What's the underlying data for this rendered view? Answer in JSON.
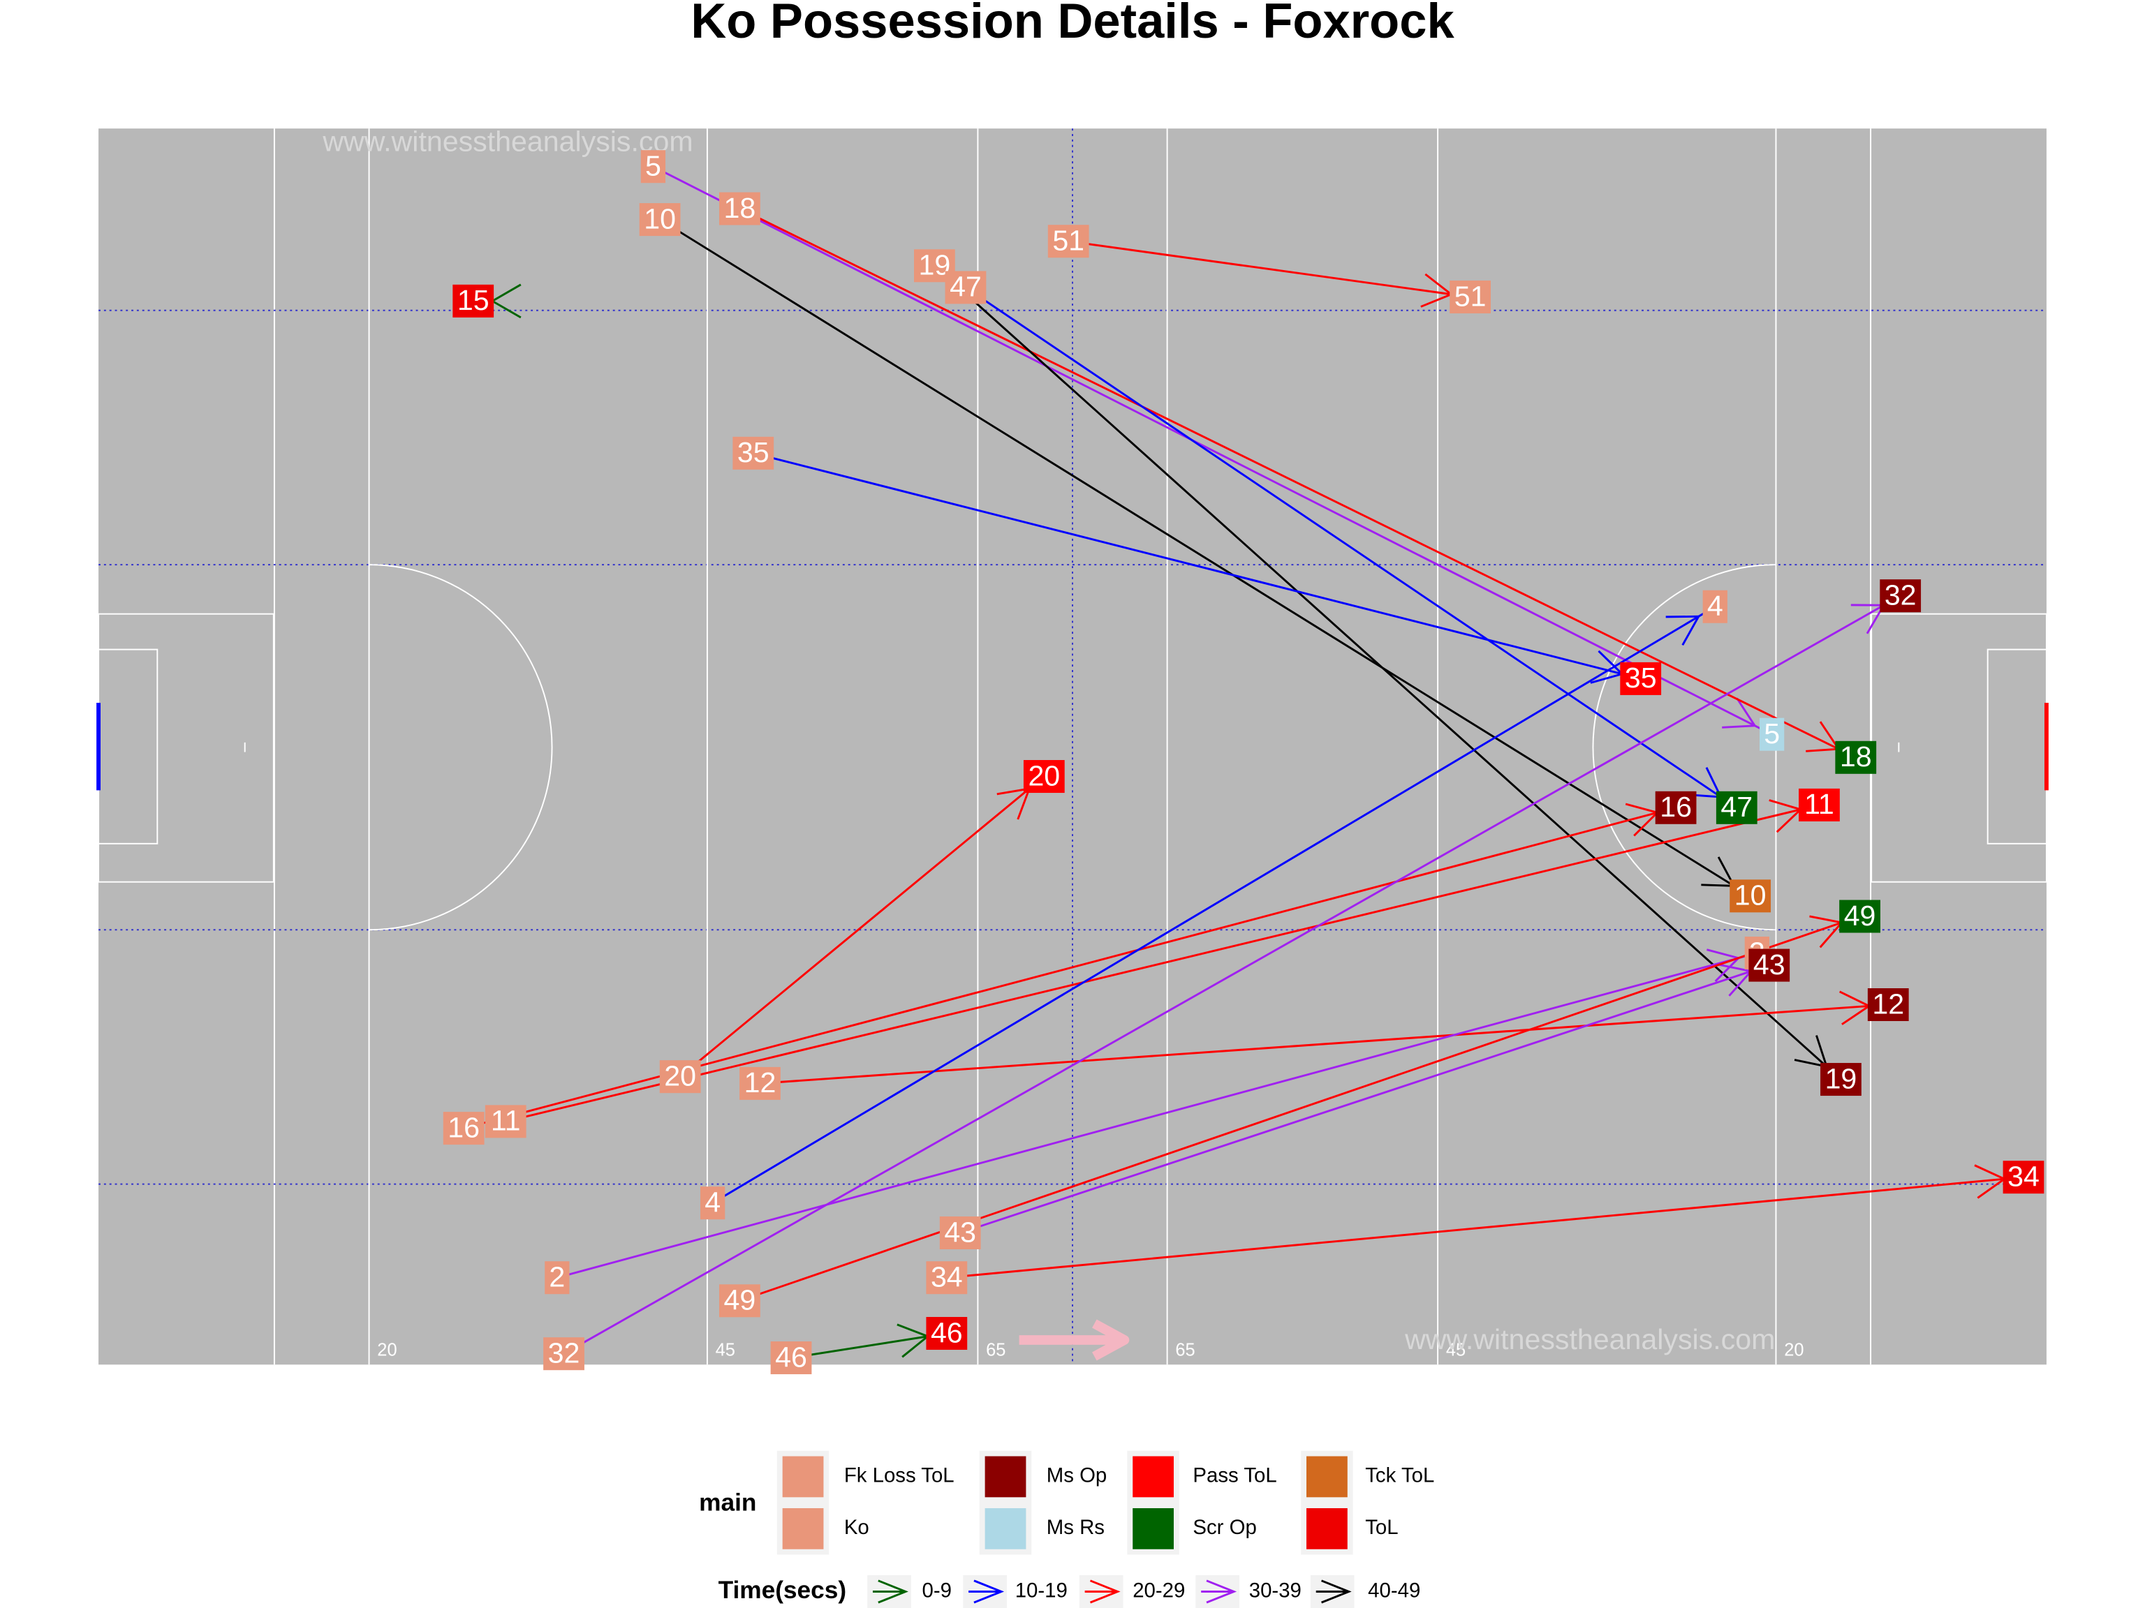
{
  "chart_data": {
    "type": "pitch_arrows",
    "title": "Ko Possession Details - Foxrock",
    "watermarks": [
      "www.witnesstheanalysis.com",
      "www.witnesstheanalysis.com"
    ],
    "xlim": [
      0,
      144
    ],
    "ylim": [
      0,
      91
    ],
    "xticks": [
      20,
      45,
      65,
      {
        "value": 79,
        "label": "65"
      },
      {
        "value": 99,
        "label": "45"
      },
      {
        "value": 124,
        "label": "20"
      }
    ],
    "legend": {
      "title": "main",
      "categories": [
        {
          "name": "Fk Loss ToL",
          "color": "#E9967A"
        },
        {
          "name": "Ko",
          "color": "#E9967A"
        },
        {
          "name": "Ms Op",
          "color": "#8B0000"
        },
        {
          "name": "Ms Rs",
          "color": "#ADD8E6"
        },
        {
          "name": "Pass ToL",
          "color": "#FF0000"
        },
        {
          "name": "Scr Op",
          "color": "#006400"
        },
        {
          "name": "Tck ToL",
          "color": "#D2691E"
        },
        {
          "name": "ToL",
          "color": "#EE0000"
        }
      ]
    },
    "time_legend": {
      "title": "Time(secs)",
      "bins": [
        {
          "name": "0-9",
          "color": "#006400"
        },
        {
          "name": "10-19",
          "color": "#0000FF"
        },
        {
          "name": "20-29",
          "color": "#FF0000"
        },
        {
          "name": "30-39",
          "color": "#A020F0"
        },
        {
          "name": "40-49",
          "color": "#000000"
        }
      ]
    },
    "arrows": [
      {
        "label": 15,
        "x": [
          27.7,
          27.7
        ],
        "y": [
          78.3,
          78.3
        ],
        "start": "Ko",
        "end": "ToL",
        "time": "0-9"
      },
      {
        "label": 5,
        "x": [
          41.0,
          123.7
        ],
        "y": [
          88.2,
          46.4
        ],
        "start": "Ko",
        "end": "Ms Rs",
        "time": "30-39"
      },
      {
        "label": 18,
        "x": [
          47.4,
          129.9
        ],
        "y": [
          85.1,
          44.7
        ],
        "start": "Ko",
        "end": "Scr Op",
        "time": "20-29"
      },
      {
        "label": 10,
        "x": [
          41.5,
          122.1
        ],
        "y": [
          84.3,
          34.5
        ],
        "start": "Ko",
        "end": "Tck ToL",
        "time": "40-49"
      },
      {
        "label": 19,
        "x": [
          61.8,
          128.8
        ],
        "y": [
          80.9,
          21.0
        ],
        "start": "Ko",
        "end": "Ms Op",
        "time": "40-49"
      },
      {
        "label": 47,
        "x": [
          64.1,
          121.1
        ],
        "y": [
          79.3,
          41.0
        ],
        "start": "Ko",
        "end": "Scr Op",
        "time": "10-19"
      },
      {
        "label": 51,
        "x": [
          71.7,
          101.4
        ],
        "y": [
          82.7,
          78.6
        ],
        "start": "Ko",
        "end": "Fk Loss ToL",
        "time": "20-29"
      },
      {
        "label": 35,
        "x": [
          48.4,
          114.0
        ],
        "y": [
          67.1,
          50.5
        ],
        "start": "Ko",
        "end": "Pass ToL",
        "time": "10-19"
      },
      {
        "label": 20,
        "x": [
          43.0,
          69.9
        ],
        "y": [
          21.2,
          43.3
        ],
        "start": "Ko",
        "end": "Pass ToL",
        "time": "20-29"
      },
      {
        "label": 16,
        "x": [
          27.0,
          116.6
        ],
        "y": [
          17.4,
          41.0
        ],
        "start": "Ko",
        "end": "Ms Op",
        "time": "20-29"
      },
      {
        "label": 11,
        "x": [
          30.1,
          127.2
        ],
        "y": [
          17.9,
          41.2
        ],
        "start": "Ko",
        "end": "Pass ToL",
        "time": "20-29"
      },
      {
        "label": 12,
        "x": [
          48.9,
          132.3
        ],
        "y": [
          20.7,
          26.5
        ],
        "start": "Ko",
        "end": "Ms Op",
        "time": "20-29"
      },
      {
        "label": 4,
        "x": [
          45.4,
          119.5
        ],
        "y": [
          11.9,
          55.8
        ],
        "start": "Ko",
        "end": "Fk Loss ToL",
        "time": "10-19"
      },
      {
        "label": 32,
        "x": [
          34.4,
          133.2
        ],
        "y": [
          0.8,
          56.6
        ],
        "start": "Ko",
        "end": "Ms Op",
        "time": "30-39"
      },
      {
        "label": 2,
        "x": [
          33.9,
          122.6
        ],
        "y": [
          6.4,
          30.3
        ],
        "start": "Ko",
        "end": "Fk Loss ToL",
        "time": "30-39"
      },
      {
        "label": 43,
        "x": [
          63.7,
          123.5
        ],
        "y": [
          9.7,
          29.4
        ],
        "start": "Ko",
        "end": "Ms Op",
        "time": "30-39"
      },
      {
        "label": 49,
        "x": [
          47.4,
          130.2
        ],
        "y": [
          4.7,
          33.0
        ],
        "start": "Ko",
        "end": "Scr Op",
        "time": "20-29"
      },
      {
        "label": 34,
        "x": [
          62.7,
          142.3
        ],
        "y": [
          6.4,
          13.8
        ],
        "start": "Ko",
        "end": "ToL",
        "time": "20-29"
      },
      {
        "label": 46,
        "x": [
          51.2,
          62.7
        ],
        "y": [
          0.5,
          2.3
        ],
        "start": "Ko",
        "end": "ToL",
        "time": "0-9"
      }
    ]
  }
}
